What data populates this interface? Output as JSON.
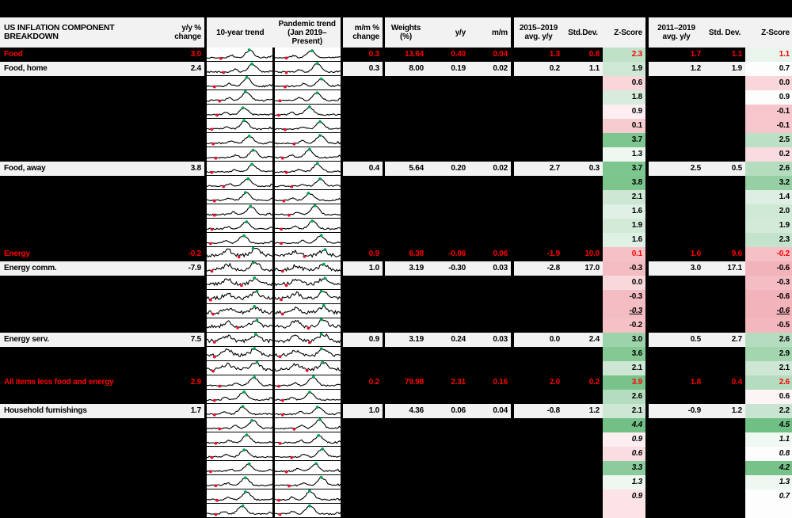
{
  "colors": {
    "background": "#000000",
    "header_bg": "#f2f2f2",
    "row_bg": "#f2f2f2",
    "accent_red": "#fe0000",
    "spark_line": "#000000",
    "spark_peak_marker": "#00a651",
    "spark_low_marker": "#e8112d"
  },
  "header": {
    "title": "US INFLATION COMPONENT BREAKDOWN",
    "yy_change": "y/y % change",
    "trend10": "10-year trend",
    "pandemic": "Pandemic trend (Jan 2019–Present)",
    "mm_change": "m/m % change",
    "weights": "Weights (%)",
    "yy": "y/y",
    "mm": "m/m",
    "avg_2015": "2015–2019 avg. y/y",
    "std1": "Std.Dev.",
    "z1": "Z-Score",
    "avg_2011": "2011–2019 avg. y/y",
    "std2": "Std. Dev.",
    "z2": "Z-Score"
  },
  "chart_data": {
    "type": "table",
    "columns": [
      "US INFLATION COMPONENT BREAKDOWN",
      "y/y % change",
      "10-year trend",
      "Pandemic trend (Jan 2019–Present)",
      "m/m % change",
      "Weights (%)",
      "y/y",
      "m/m",
      "2015–2019 avg. y/y",
      "Std.Dev.",
      "Z-Score",
      "2011–2019 avg. y/y",
      "Std. Dev.",
      "Z-Score"
    ],
    "rows": [
      {
        "type": "agg",
        "name": "Food",
        "yy_change": "3.0",
        "mm_change": "0.3",
        "weights": "13.64",
        "yy": "0.40",
        "mm": "0.04",
        "avg1": "1.3",
        "std1": "0.8",
        "z1": "2.3",
        "z1_bg": "#bfe1c8",
        "avg2": "1.7",
        "std2": "1.1",
        "z2": "1.1",
        "z2_bg": "#e9f4ec",
        "spark": "hump",
        "zstyle": ""
      },
      {
        "type": "sub",
        "name": "Food, home",
        "yy_change": "2.4",
        "mm_change": "0.3",
        "weights": "8.00",
        "yy": "0.19",
        "mm": "0.02",
        "avg1": "0.2",
        "std1": "1.1",
        "z1": "1.9",
        "z1_bg": "#cfe8d6",
        "avg2": "1.2",
        "std2": "1.9",
        "z2": "0.7",
        "z2_bg": "#fcfdfc",
        "spark": "hump",
        "zstyle": ""
      },
      {
        "type": "blank",
        "name": "",
        "yy_change": "",
        "mm_change": "",
        "weights": "",
        "yy": "",
        "mm": "",
        "avg1": "",
        "std1": "",
        "z1": "0.6",
        "z1_bg": "#f9d6da",
        "avg2": "",
        "std2": "",
        "z2": "0.0",
        "z2_bg": "#f9d6da",
        "spark": "hump",
        "zstyle": ""
      },
      {
        "type": "blank",
        "name": "",
        "yy_change": "",
        "mm_change": "",
        "weights": "",
        "yy": "",
        "mm": "",
        "avg1": "",
        "std1": "",
        "z1": "1.8",
        "z1_bg": "#d7ecdc",
        "avg2": "",
        "std2": "",
        "z2": "0.9",
        "z2_bg": "#fdfdfd",
        "spark": "hump",
        "zstyle": ""
      },
      {
        "type": "blank",
        "name": "",
        "yy_change": "",
        "mm_change": "",
        "weights": "",
        "yy": "",
        "mm": "",
        "avg1": "",
        "std1": "",
        "z1": "0.9",
        "z1_bg": "#fdeff1",
        "avg2": "",
        "std2": "",
        "z2": "-0.1",
        "z2_bg": "#f6c6cc",
        "spark": "hump",
        "zstyle": ""
      },
      {
        "type": "blank",
        "name": "",
        "yy_change": "",
        "mm_change": "",
        "weights": "",
        "yy": "",
        "mm": "",
        "avg1": "",
        "std1": "",
        "z1": "0.1",
        "z1_bg": "#f7ccd1",
        "avg2": "",
        "std2": "",
        "z2": "-0.1",
        "z2_bg": "#f6c6cc",
        "spark": "hump",
        "zstyle": ""
      },
      {
        "type": "blank",
        "name": "",
        "yy_change": "",
        "mm_change": "",
        "weights": "",
        "yy": "",
        "mm": "",
        "avg1": "",
        "std1": "",
        "z1": "3.7",
        "z1_bg": "#7ec68f",
        "avg2": "",
        "std2": "",
        "z2": "2.5",
        "z2_bg": "#bce0c5",
        "spark": "hump",
        "zstyle": ""
      },
      {
        "type": "blank",
        "name": "",
        "yy_change": "",
        "mm_change": "",
        "weights": "",
        "yy": "",
        "mm": "",
        "avg1": "",
        "std1": "",
        "z1": "1.3",
        "z1_bg": "#eff7f1",
        "avg2": "",
        "std2": "",
        "z2": "0.2",
        "z2_bg": "#fadce0",
        "spark": "hump",
        "zstyle": ""
      },
      {
        "type": "sub",
        "name": "Food, away",
        "yy_change": "3.8",
        "mm_change": "0.4",
        "weights": "5.64",
        "yy": "0.20",
        "mm": "0.02",
        "avg1": "2.7",
        "std1": "0.3",
        "z1": "3.7",
        "z1_bg": "#7ec68f",
        "avg2": "2.5",
        "std2": "0.5",
        "z2": "2.6",
        "z2_bg": "#b4dcbe",
        "spark": "hump",
        "zstyle": ""
      },
      {
        "type": "blank",
        "name": "",
        "yy_change": "",
        "mm_change": "",
        "weights": "",
        "yy": "",
        "mm": "",
        "avg1": "",
        "std1": "",
        "z1": "3.8",
        "z1_bg": "#7bc58d",
        "avg2": "",
        "std2": "",
        "z2": "3.2",
        "z2_bg": "#95cfa3",
        "spark": "hump",
        "zstyle": ""
      },
      {
        "type": "blank",
        "name": "",
        "yy_change": "",
        "mm_change": "",
        "weights": "",
        "yy": "",
        "mm": "",
        "avg1": "",
        "std1": "",
        "z1": "2.1",
        "z1_bg": "#cde7d4",
        "avg2": "",
        "std2": "",
        "z2": "1.4",
        "z2_bg": "#ddefe2",
        "spark": "hump",
        "zstyle": ""
      },
      {
        "type": "blank",
        "name": "",
        "yy_change": "",
        "mm_change": "",
        "weights": "",
        "yy": "",
        "mm": "",
        "avg1": "",
        "std1": "",
        "z1": "1.6",
        "z1_bg": "#dff0e4",
        "avg2": "",
        "std2": "",
        "z2": "2.0",
        "z2_bg": "#d0e9d7",
        "spark": "hump",
        "zstyle": ""
      },
      {
        "type": "blank",
        "name": "",
        "yy_change": "",
        "mm_change": "",
        "weights": "",
        "yy": "",
        "mm": "",
        "avg1": "",
        "std1": "",
        "z1": "1.9",
        "z1_bg": "#d4ead9",
        "avg2": "",
        "std2": "",
        "z2": "1.9",
        "z2_bg": "#d4ead9",
        "spark": "hump",
        "zstyle": ""
      },
      {
        "type": "blank",
        "name": "",
        "yy_change": "",
        "mm_change": "",
        "weights": "",
        "yy": "",
        "mm": "",
        "avg1": "",
        "std1": "",
        "z1": "1.6",
        "z1_bg": "#dff0e4",
        "avg2": "",
        "std2": "",
        "z2": "2.3",
        "z2_bg": "#c4e3cc",
        "spark": "hump",
        "zstyle": ""
      },
      {
        "type": "agg",
        "name": "Energy",
        "yy_change": "-0.2",
        "mm_change": "0.9",
        "weights": "6.38",
        "yy": "-0.06",
        "mm": "0.06",
        "avg1": "-1.9",
        "std1": "10.0",
        "z1": "0.1",
        "z1_bg": "#f5c1c7",
        "avg2": "1.6",
        "std2": "9.6",
        "z2": "-0.2",
        "z2_bg": "#f5c1c7",
        "spark": "jagged",
        "zstyle": ""
      },
      {
        "type": "sub",
        "name": "Energy comm.",
        "yy_change": "-7.9",
        "mm_change": "1.0",
        "weights": "3.19",
        "yy": "-0.30",
        "mm": "0.03",
        "avg1": "-2.8",
        "std1": "17.0",
        "z1": "-0.3",
        "z1_bg": "#f4bdc4",
        "avg2": "3.0",
        "std2": "17.1",
        "z2": "-0.6",
        "z2_bg": "#f2b3bb",
        "spark": "jagged",
        "zstyle": ""
      },
      {
        "type": "blank",
        "name": "",
        "yy_change": "",
        "mm_change": "",
        "weights": "",
        "yy": "",
        "mm": "",
        "avg1": "",
        "std1": "",
        "z1": "0.0",
        "z1_bg": "#f9d8db",
        "avg2": "",
        "std2": "",
        "z2": "-0.3",
        "z2_bg": "#f4bdc4",
        "spark": "jagged",
        "zstyle": ""
      },
      {
        "type": "blank",
        "name": "",
        "yy_change": "",
        "mm_change": "",
        "weights": "",
        "yy": "",
        "mm": "",
        "avg1": "",
        "std1": "",
        "z1": "-0.3",
        "z1_bg": "#f4bdc4",
        "avg2": "",
        "std2": "",
        "z2": "-0.6",
        "z2_bg": "#f2b3bb",
        "spark": "jagged",
        "zstyle": ""
      },
      {
        "type": "blank",
        "name": "",
        "yy_change": "",
        "mm_change": "",
        "weights": "",
        "yy": "",
        "mm": "",
        "avg1": "",
        "std1": "",
        "z1": "-0.3",
        "z1_bg": "#f4bdc4",
        "avg2": "",
        "std2": "",
        "z2": "-0.6",
        "z2_bg": "#f2b3bb",
        "spark": "jagged",
        "zstyle": "iu"
      },
      {
        "type": "blank",
        "name": "",
        "yy_change": "",
        "mm_change": "",
        "weights": "",
        "yy": "",
        "mm": "",
        "avg1": "",
        "std1": "",
        "z1": "-0.2",
        "z1_bg": "#f5c1c7",
        "avg2": "",
        "std2": "",
        "z2": "-0.5",
        "z2_bg": "#f3b8bf",
        "spark": "jagged",
        "zstyle": ""
      },
      {
        "type": "sub",
        "name": "Energy serv.",
        "yy_change": "7.5",
        "mm_change": "0.9",
        "weights": "3.19",
        "yy": "0.24",
        "mm": "0.03",
        "avg1": "0.0",
        "std1": "2.4",
        "z1": "3.0",
        "z1_bg": "#9dd3aa",
        "avg2": "0.5",
        "std2": "2.7",
        "z2": "2.6",
        "z2_bg": "#b4dcbe",
        "spark": "jagged",
        "zstyle": ""
      },
      {
        "type": "blank",
        "name": "",
        "yy_change": "",
        "mm_change": "",
        "weights": "",
        "yy": "",
        "mm": "",
        "avg1": "",
        "std1": "",
        "z1": "3.6",
        "z1_bg": "#84c994",
        "avg2": "",
        "std2": "",
        "z2": "2.9",
        "z2_bg": "#a3d6af",
        "spark": "jagged",
        "zstyle": ""
      },
      {
        "type": "blank",
        "name": "",
        "yy_change": "",
        "mm_change": "",
        "weights": "",
        "yy": "",
        "mm": "",
        "avg1": "",
        "std1": "",
        "z1": "2.1",
        "z1_bg": "#cde7d4",
        "avg2": "",
        "std2": "",
        "z2": "2.1",
        "z2_bg": "#cde7d4",
        "spark": "jagged",
        "zstyle": ""
      },
      {
        "type": "agg",
        "name": "All items less food and energy",
        "yy_change": "2.9",
        "mm_change": "0.2",
        "weights": "79.98",
        "yy": "2.31",
        "mm": "0.16",
        "avg1": "2.0",
        "std1": "0.2",
        "z1": "3.9",
        "z1_bg": "#79c38b",
        "avg2": "1.8",
        "std2": "0.4",
        "z2": "2.6",
        "z2_bg": "#b4dcbe",
        "spark": "hump",
        "zstyle": ""
      },
      {
        "type": "blank",
        "name": "",
        "yy_change": "",
        "mm_change": "",
        "weights": "",
        "yy": "",
        "mm": "",
        "avg1": "",
        "std1": "",
        "z1": "2.6",
        "z1_bg": "#b4dcbe",
        "avg2": "",
        "std2": "",
        "z2": "0.6",
        "z2_bg": "#fdf4f5",
        "spark": "hump",
        "zstyle": ""
      },
      {
        "type": "sub",
        "name": "Household furnishings",
        "yy_change": "1.7",
        "mm_change": "1.0",
        "weights": "4.36",
        "yy": "0.06",
        "mm": "0.04",
        "avg1": "-0.8",
        "std1": "1.2",
        "z1": "2.1",
        "z1_bg": "#cde7d4",
        "avg2": "-0.9",
        "std2": "1.2",
        "z2": "2.2",
        "z2_bg": "#c9e5d1",
        "spark": "hump",
        "zstyle": ""
      },
      {
        "type": "blank",
        "name": "",
        "yy_change": "",
        "mm_change": "",
        "weights": "",
        "yy": "",
        "mm": "",
        "avg1": "",
        "std1": "",
        "z1": "4.4",
        "z1_bg": "#72c086",
        "avg2": "",
        "std2": "",
        "z2": "4.5",
        "z2_bg": "#70bf85",
        "spark": "hump",
        "zstyle": "it"
      },
      {
        "type": "blank",
        "name": "",
        "yy_change": "",
        "mm_change": "",
        "weights": "",
        "yy": "",
        "mm": "",
        "avg1": "",
        "std1": "",
        "z1": "0.9",
        "z1_bg": "#fdeff1",
        "avg2": "",
        "std2": "",
        "z2": "1.1",
        "z2_bg": "#f0f8f2",
        "spark": "hump",
        "zstyle": "it"
      },
      {
        "type": "blank",
        "name": "",
        "yy_change": "",
        "mm_change": "",
        "weights": "",
        "yy": "",
        "mm": "",
        "avg1": "",
        "std1": "",
        "z1": "0.6",
        "z1_bg": "#f9dde0",
        "avg2": "",
        "std2": "",
        "z2": "0.8",
        "z2_bg": "#fdfdfd",
        "spark": "hump",
        "zstyle": "it"
      },
      {
        "type": "blank",
        "name": "",
        "yy_change": "",
        "mm_change": "",
        "weights": "",
        "yy": "",
        "mm": "",
        "avg1": "",
        "std1": "",
        "z1": "3.3",
        "z1_bg": "#8ccb9b",
        "avg2": "",
        "std2": "",
        "z2": "4.2",
        "z2_bg": "#76c289",
        "spark": "hump",
        "zstyle": "it"
      },
      {
        "type": "blank",
        "name": "",
        "yy_change": "",
        "mm_change": "",
        "weights": "",
        "yy": "",
        "mm": "",
        "avg1": "",
        "std1": "",
        "z1": "1.3",
        "z1_bg": "#eff7f1",
        "avg2": "",
        "std2": "",
        "z2": "1.3",
        "z2_bg": "#eff7f1",
        "spark": "hump",
        "zstyle": "it"
      },
      {
        "type": "blank",
        "name": "",
        "yy_change": "",
        "mm_change": "",
        "weights": "",
        "yy": "",
        "mm": "",
        "avg1": "",
        "std1": "",
        "z1": "0.9",
        "z1_bg": "#fbe3e6",
        "avg2": "",
        "std2": "",
        "z2": "0.7",
        "z2_bg": "#fdfdfd",
        "spark": "hump",
        "zstyle": "it"
      },
      {
        "type": "partial",
        "name": "",
        "yy_change": "",
        "mm_change": "",
        "weights": "",
        "yy": "",
        "mm": "",
        "avg1": "",
        "std1": "",
        "z1": "",
        "z1_bg": "#fbe3e6",
        "avg2": "",
        "std2": "",
        "z2": "",
        "z2_bg": "#fdfdfd",
        "spark": "hump",
        "zstyle": ""
      }
    ]
  }
}
